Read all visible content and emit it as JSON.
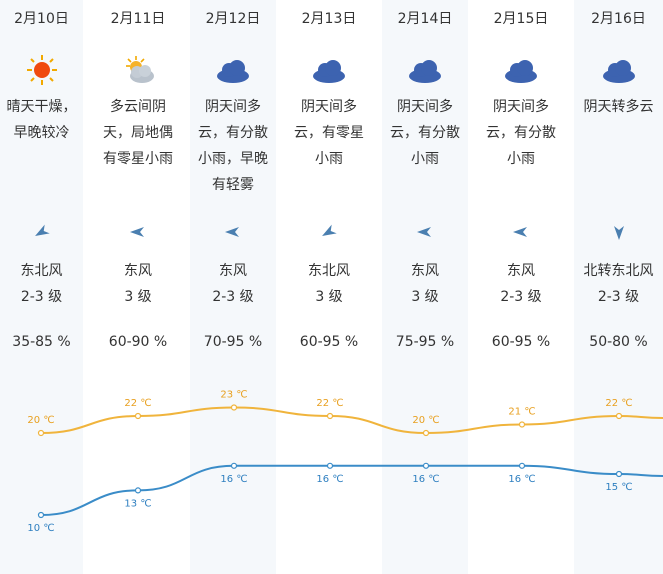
{
  "days": [
    {
      "date": "2月10日",
      "icon": "sun-icon",
      "desc": "晴天干燥，早晚较冷",
      "wind_dir": "东北风",
      "wind_level": "2-3 级",
      "humidity": "35-85 %",
      "high": "20 ℃",
      "low": "10 ℃",
      "high_val": 20,
      "low_val": 10,
      "arrow_angle": -120
    },
    {
      "date": "2月11日",
      "icon": "sun-cloud-icon",
      "desc": "多云间阴天，局地偶有零星小雨",
      "wind_dir": "东风",
      "wind_level": "3 级",
      "humidity": "60-90 %",
      "high": "22 ℃",
      "low": "13 ℃",
      "high_val": 22,
      "low_val": 13,
      "arrow_angle": -90
    },
    {
      "date": "2月12日",
      "icon": "cloud-icon",
      "desc": "阴天间多云，有分散小雨，早晚有轻雾",
      "wind_dir": "东风",
      "wind_level": "2-3 级",
      "humidity": "70-95 %",
      "high": "23 ℃",
      "low": "16 ℃",
      "high_val": 23,
      "low_val": 16,
      "arrow_angle": -90
    },
    {
      "date": "2月13日",
      "icon": "cloud-icon",
      "desc": "阴天间多云，有零星小雨",
      "wind_dir": "东北风",
      "wind_level": "3 级",
      "humidity": "60-95 %",
      "high": "22 ℃",
      "low": "16 ℃",
      "high_val": 22,
      "low_val": 16,
      "arrow_angle": -120
    },
    {
      "date": "2月14日",
      "icon": "cloud-icon",
      "desc": "阴天间多云，有分散小雨",
      "wind_dir": "东风",
      "wind_level": "3 级",
      "humidity": "75-95 %",
      "high": "20 ℃",
      "low": "16 ℃",
      "high_val": 20,
      "low_val": 16,
      "arrow_angle": -90
    },
    {
      "date": "2月15日",
      "icon": "cloud-icon",
      "desc": "阴天间多云，有分散小雨",
      "wind_dir": "东风",
      "wind_level": "2-3 级",
      "humidity": "60-95 %",
      "high": "21 ℃",
      "low": "16 ℃",
      "high_val": 21,
      "low_val": 16,
      "arrow_angle": -90
    },
    {
      "date": "2月16日",
      "icon": "cloud-icon",
      "desc": "阴天转多云",
      "wind_dir": "北转东北风",
      "wind_level": "2-3 级",
      "humidity": "50-80 %",
      "high": "22 ℃",
      "low": "15 ℃",
      "high_val": 22,
      "low_val": 15,
      "arrow_angle": 180
    }
  ],
  "colors": {
    "high_line": "#f0b43c",
    "low_line": "#3a8cc8",
    "high_text": "#e8a020",
    "low_text": "#2e7fc0",
    "arrow": "#4a7fb0",
    "cloud": "#3d63b0"
  }
}
